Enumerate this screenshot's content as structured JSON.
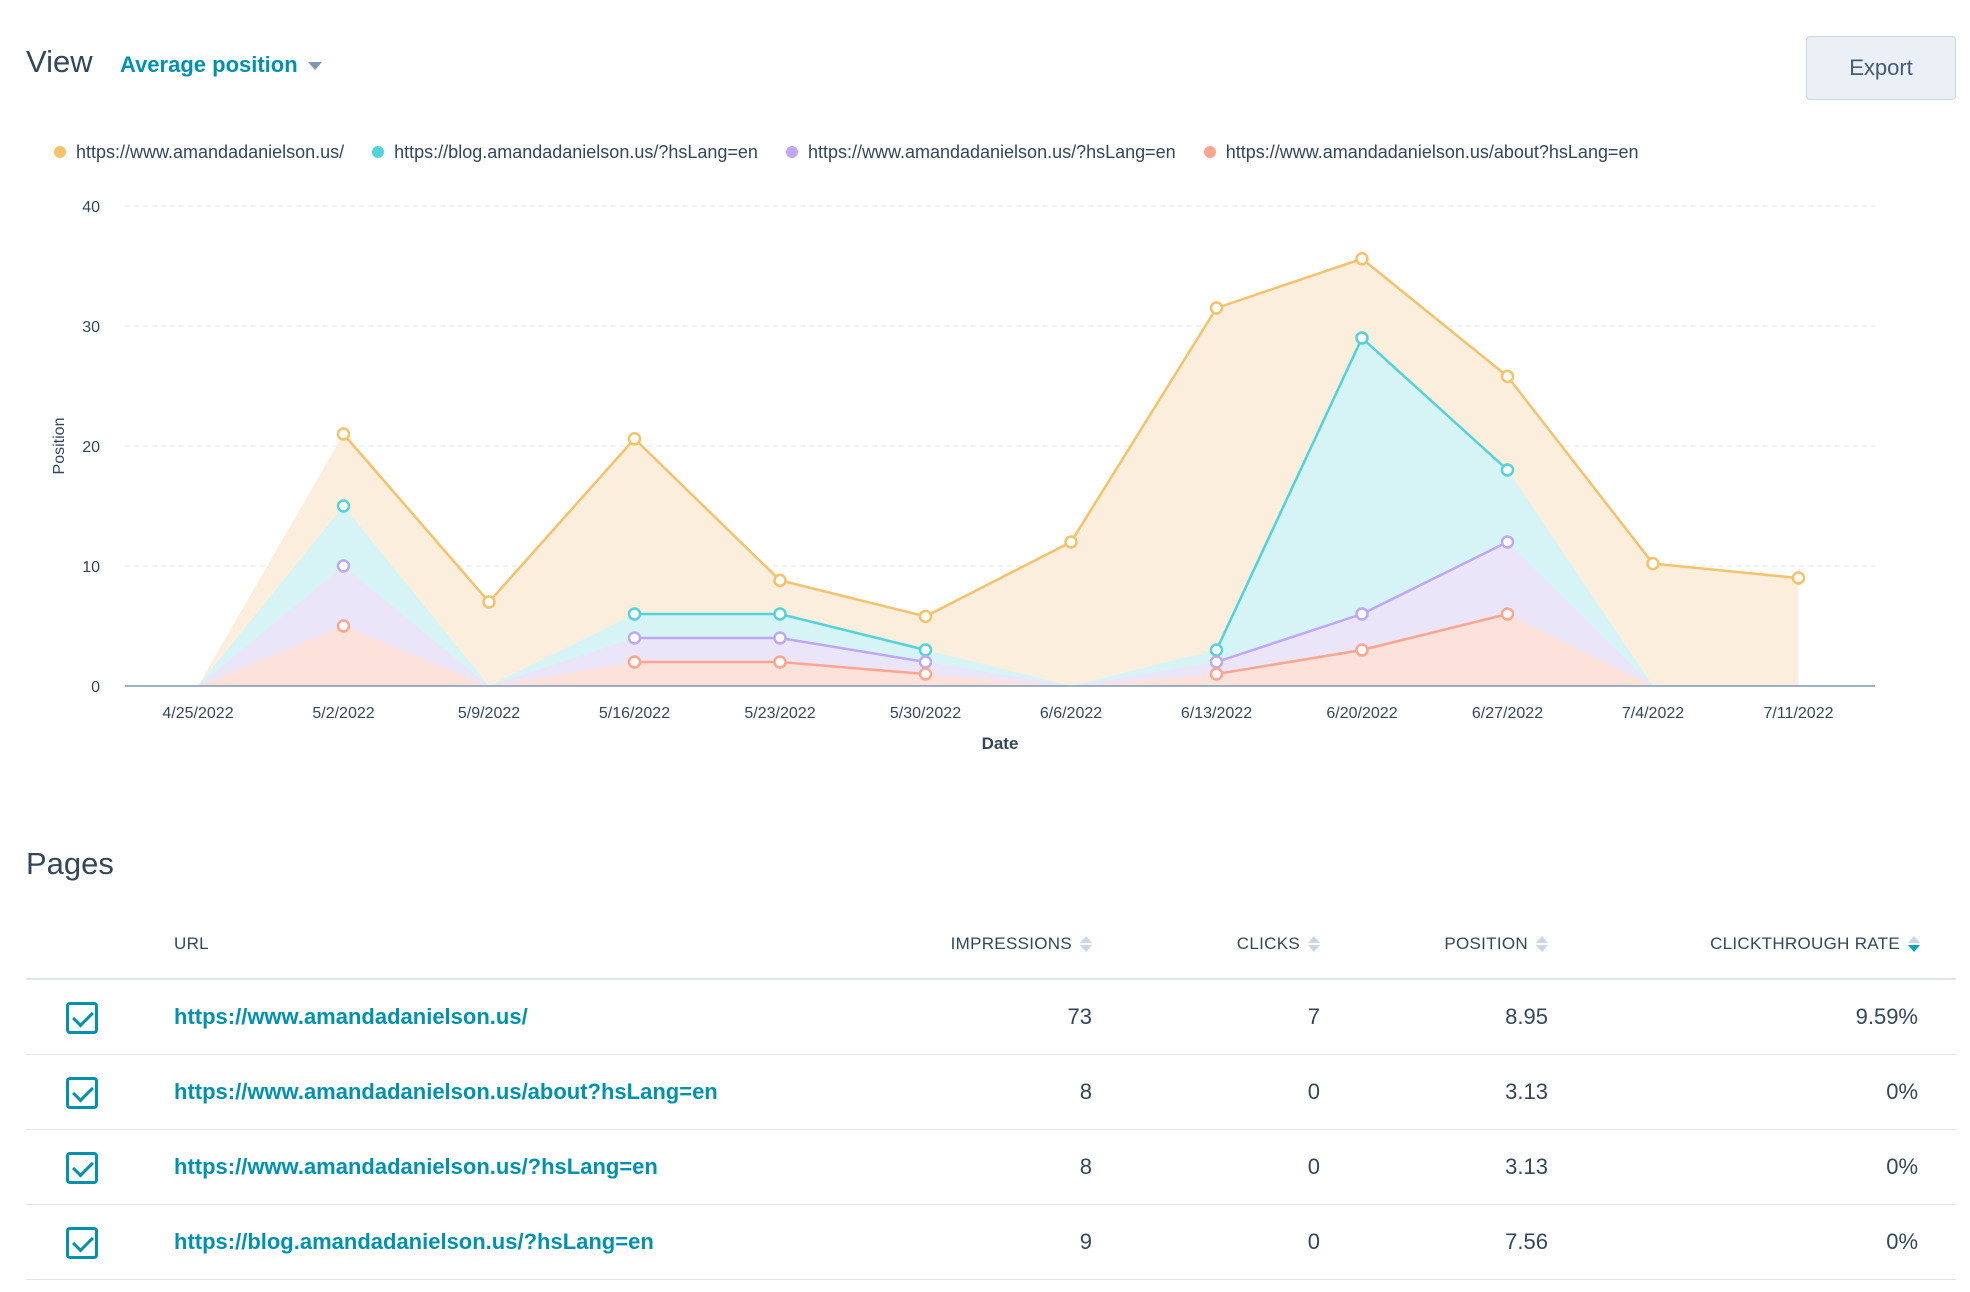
{
  "header": {
    "title": "View",
    "view_selector": "Average position",
    "export_label": "Export"
  },
  "legend": [
    {
      "label": "https://www.amandadanielson.us/",
      "color": "#f5c26b"
    },
    {
      "label": "https://blog.amandadanielson.us/?hsLang=en",
      "color": "#51d3d9"
    },
    {
      "label": "https://www.amandadanielson.us/?hsLang=en",
      "color": "#bea7f4"
    },
    {
      "label": "https://www.amandadanielson.us/about?hsLang=en",
      "color": "#fea58e"
    }
  ],
  "chart_data": {
    "type": "area",
    "xlabel": "Date",
    "ylabel": "Position",
    "ylim": [
      0,
      40
    ],
    "yticks": [
      0,
      10,
      20,
      30,
      40
    ],
    "grid": true,
    "legend_position": "top-left",
    "categories": [
      "4/25/2022",
      "5/2/2022",
      "5/9/2022",
      "5/16/2022",
      "5/23/2022",
      "5/30/2022",
      "6/6/2022",
      "6/13/2022",
      "6/20/2022",
      "6/27/2022",
      "7/4/2022",
      "7/11/2022"
    ],
    "series": [
      {
        "name": "https://www.amandadanielson.us/",
        "color": "#f5c26b",
        "fill": "#fbeddb",
        "values": [
          0,
          21,
          7,
          20.6,
          8.8,
          5.8,
          12,
          31.5,
          35.6,
          25.8,
          10.2,
          9
        ]
      },
      {
        "name": "https://blog.amandadanielson.us/?hsLang=en",
        "color": "#51d3d9",
        "fill": "#d4f3f5",
        "values": [
          0,
          15,
          0,
          6,
          6,
          3,
          0,
          3,
          29,
          18,
          0,
          null
        ]
      },
      {
        "name": "https://www.amandadanielson.us/?hsLang=en",
        "color": "#bea7f4",
        "fill": "#ece4fa",
        "values": [
          0,
          10,
          0,
          4,
          4,
          2,
          0,
          2,
          6,
          12,
          0,
          null
        ]
      },
      {
        "name": "https://www.amandadanielson.us/about?hsLang=en",
        "color": "#fea58e",
        "fill": "#fde2d9",
        "values": [
          0,
          5,
          0,
          2,
          2,
          1,
          0,
          1,
          3,
          6,
          0,
          null
        ]
      }
    ]
  },
  "pages": {
    "title": "Pages",
    "columns": {
      "url": "URL",
      "impressions": "IMPRESSIONS",
      "clicks": "CLICKS",
      "position": "POSITION",
      "ctr": "CLICKTHROUGH RATE"
    },
    "rows": [
      {
        "url": "https://www.amandadanielson.us/",
        "impressions": "73",
        "clicks": "7",
        "position": "8.95",
        "ctr": "9.59%"
      },
      {
        "url": "https://www.amandadanielson.us/about?hsLang=en",
        "impressions": "8",
        "clicks": "0",
        "position": "3.13",
        "ctr": "0%"
      },
      {
        "url": "https://www.amandadanielson.us/?hsLang=en",
        "impressions": "8",
        "clicks": "0",
        "position": "3.13",
        "ctr": "0%"
      },
      {
        "url": "https://blog.amandadanielson.us/?hsLang=en",
        "impressions": "9",
        "clicks": "0",
        "position": "7.56",
        "ctr": "0%"
      }
    ]
  }
}
